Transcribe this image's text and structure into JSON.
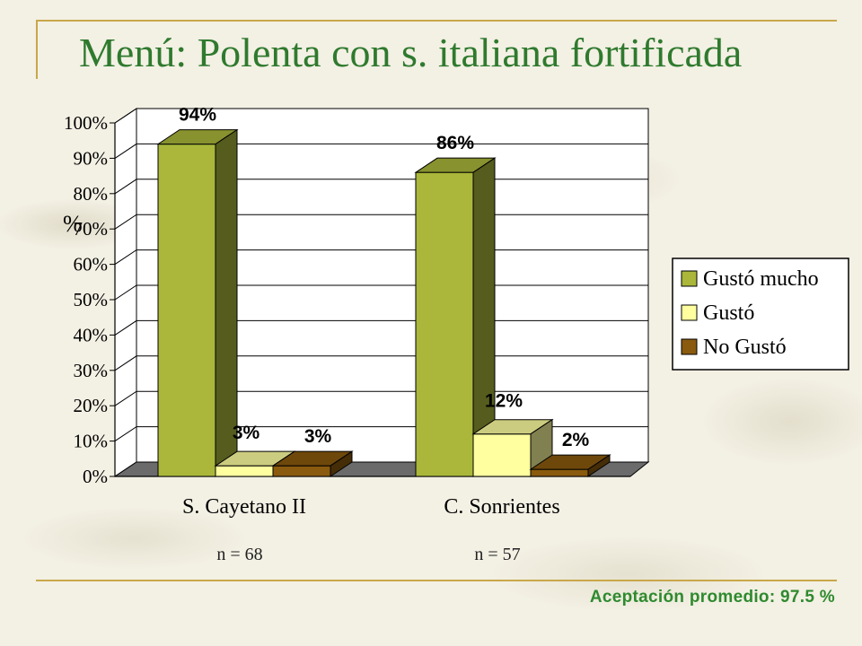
{
  "slide": {
    "title": "Menú: Polenta con s. italiana fortificada",
    "footer": "Aceptación promedio: 97.5 %"
  },
  "colors": {
    "title": "#2f7a2e",
    "footer": "#2e8a2e",
    "rule": "#c9a74a"
  },
  "chart_data": {
    "type": "bar",
    "style": "3d-clustered-column",
    "ylabel": "%",
    "ylim": [
      0,
      100
    ],
    "yticks": [
      "0%",
      "10%",
      "20%",
      "30%",
      "40%",
      "50%",
      "60%",
      "70%",
      "80%",
      "90%",
      "100%"
    ],
    "grid": true,
    "legend_position": "right",
    "categories": [
      "S. Cayetano II",
      "C. Sonrientes"
    ],
    "sample_sizes": [
      "n = 68",
      "n = 57"
    ],
    "series": [
      {
        "name": "Gustó mucho",
        "values": [
          94,
          86
        ],
        "labels": [
          "94%",
          "86%"
        ],
        "color": "#aab73a"
      },
      {
        "name": "Gustó",
        "values": [
          3,
          12
        ],
        "labels": [
          "3%",
          "12%"
        ],
        "color": "#ffffa0"
      },
      {
        "name": "No Gustó",
        "values": [
          3,
          2
        ],
        "labels": [
          "3%",
          "2%"
        ],
        "color": "#8a5a0e"
      }
    ]
  }
}
